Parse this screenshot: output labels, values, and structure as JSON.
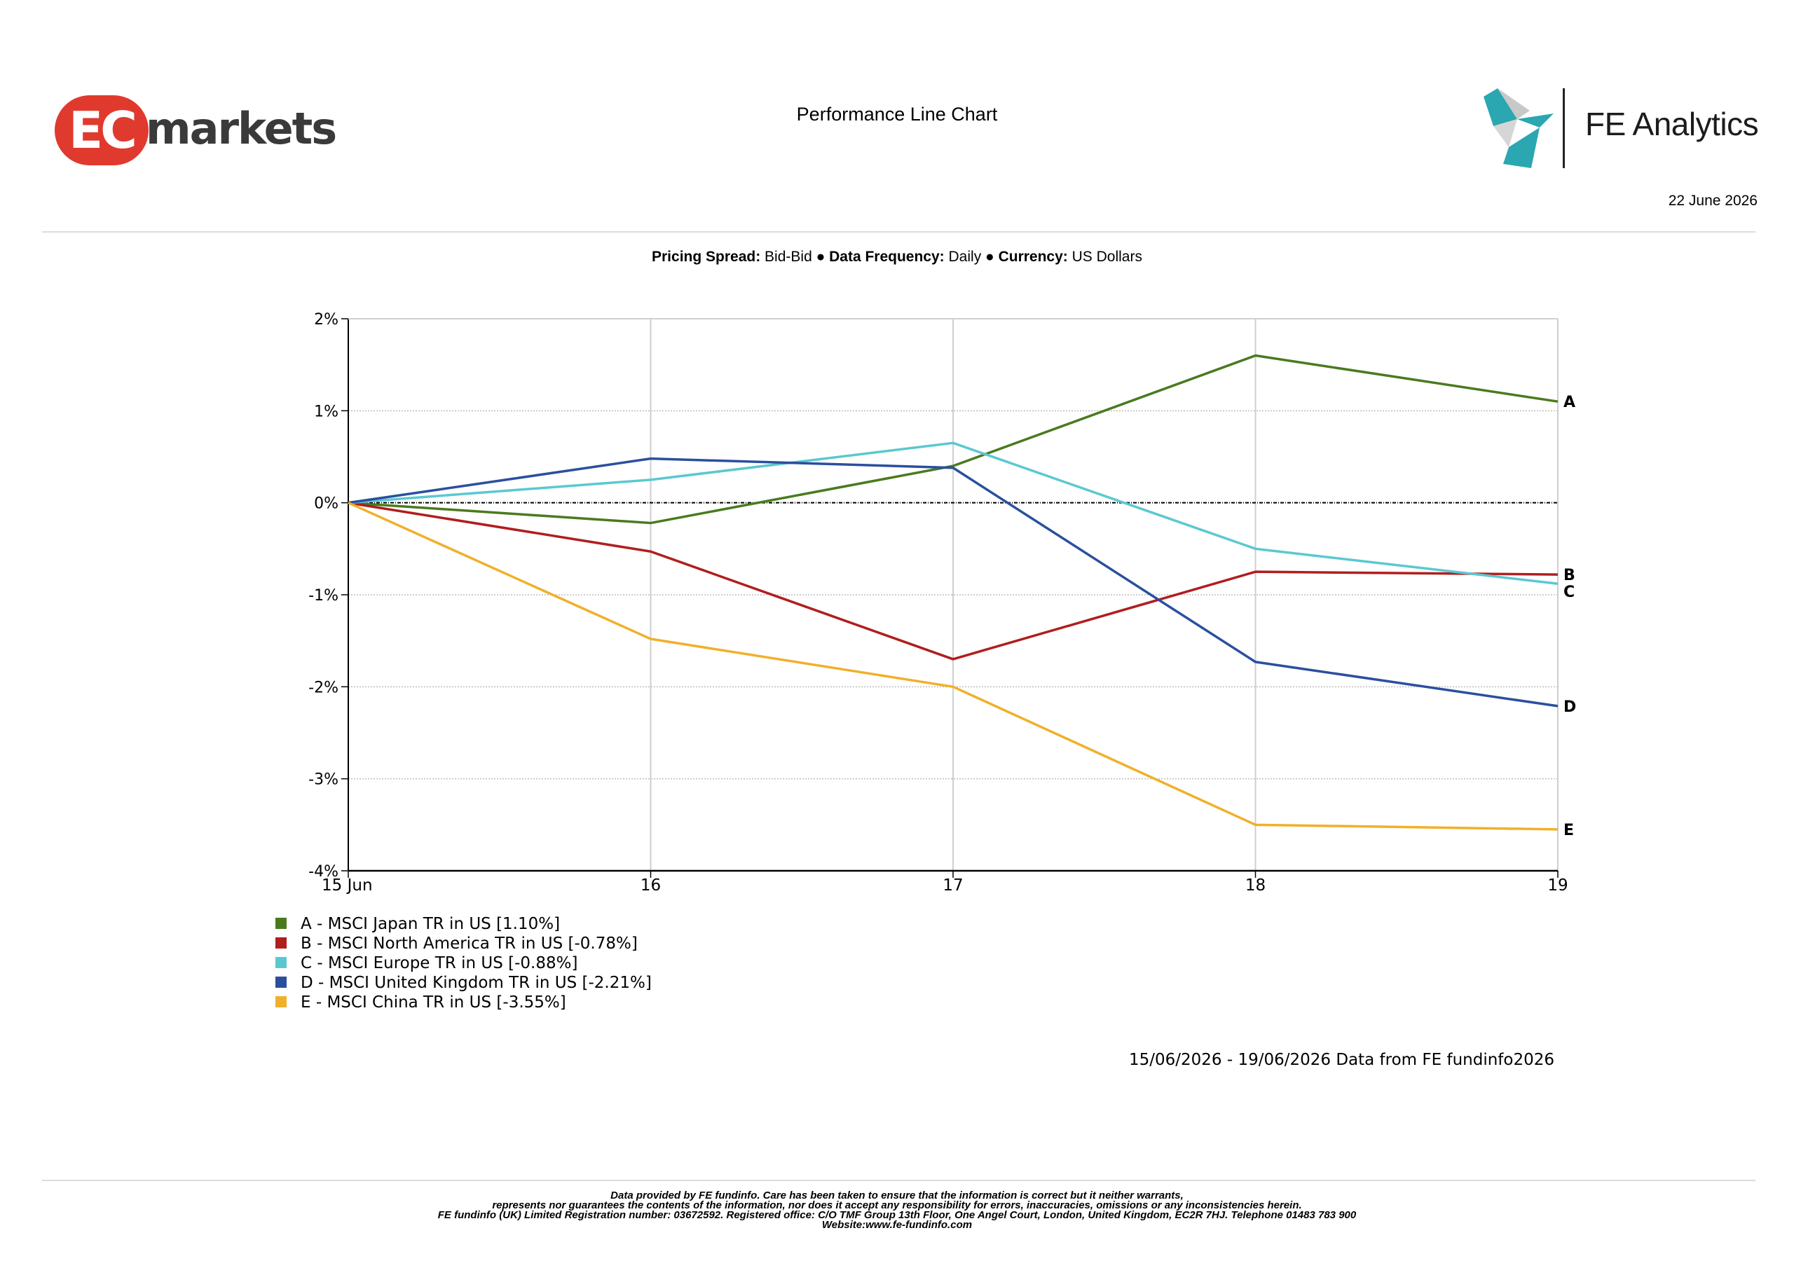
{
  "header": {
    "brand_left": {
      "part1": "EC",
      "part2": "markets"
    },
    "title": "Performance Line Chart",
    "brand_right": "FE Analytics",
    "date": "22 June 2026"
  },
  "settings": {
    "spread_label": "Pricing Spread:",
    "spread_value": "Bid-Bid",
    "freq_label": "Data Frequency:",
    "freq_value": "Daily",
    "currency_label": "Currency:",
    "currency_value": "US Dollars",
    "separator": "●"
  },
  "colors": {
    "A": "#4a7a1e",
    "B": "#b01e1e",
    "C": "#5bc8d0",
    "D": "#2a4f9e",
    "E": "#f0b02a"
  },
  "chart_data": {
    "type": "line",
    "title": "Performance Line Chart",
    "x": [
      "15 Jun",
      "16",
      "17",
      "18",
      "19"
    ],
    "y_ticks": [
      "2%",
      "1%",
      "0%",
      "-1%",
      "-2%",
      "-3%",
      "-4%"
    ],
    "ylim": [
      -4,
      2
    ],
    "grid": true,
    "legend_position": "bottom-left",
    "series": [
      {
        "key": "A",
        "name": "A - MSCI Japan TR in US [1.10%]",
        "values": [
          0,
          -0.22,
          0.4,
          1.6,
          1.1
        ]
      },
      {
        "key": "B",
        "name": "B - MSCI North America TR in US [-0.78%]",
        "values": [
          0,
          -0.53,
          -1.7,
          -0.75,
          -0.78
        ]
      },
      {
        "key": "C",
        "name": "C - MSCI Europe TR in US [-0.88%]",
        "values": [
          0,
          0.25,
          0.65,
          -0.5,
          -0.88
        ]
      },
      {
        "key": "D",
        "name": "D - MSCI United Kingdom TR in US [-2.21%]",
        "values": [
          0,
          0.48,
          0.38,
          -1.73,
          -2.21
        ]
      },
      {
        "key": "E",
        "name": "E - MSCI China TR in US [-3.55%]",
        "values": [
          0,
          -1.48,
          -2.0,
          -3.5,
          -3.55
        ]
      }
    ]
  },
  "footer": {
    "source_note": "15/06/2026 - 19/06/2026 Data from FE fundinfo2026",
    "disclaimer": [
      "Data provided by FE fundinfo. Care has been taken to ensure that the information is correct but it neither warrants,",
      "represents nor guarantees the contents of the information, nor does it accept any responsibility for errors, inaccuracies, omissions or any inconsistencies herein.",
      "FE fundinfo (UK) Limited Registration number: 03672592. Registered office: C/O TMF Group 13th Floor, One Angel Court, London, United Kingdom, EC2R 7HJ. Telephone 01483 783 900",
      "Website:www.fe-fundinfo.com"
    ]
  }
}
